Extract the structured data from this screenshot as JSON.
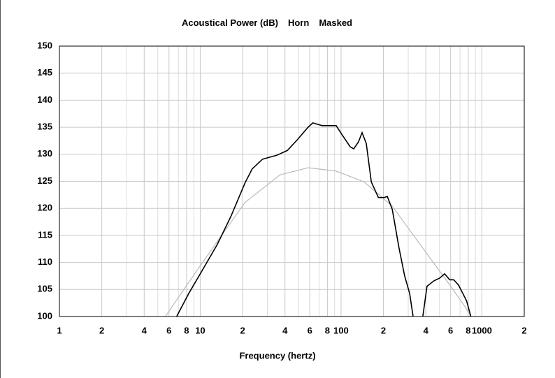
{
  "chart_data": {
    "type": "line",
    "title": "Acoustical Power (dB)",
    "xlabel": "Frequency (hertz)",
    "xscale": "log",
    "grid": true,
    "xlim": [
      1,
      2000
    ],
    "ylim": [
      100,
      150
    ],
    "yticks": [
      100,
      105,
      110,
      115,
      120,
      125,
      130,
      135,
      140,
      145,
      150
    ],
    "xticks": [
      1,
      2,
      4,
      6,
      8,
      10,
      {
        "value": 20,
        "label": "2"
      },
      {
        "value": 40,
        "label": "4"
      },
      {
        "value": 60,
        "label": "6"
      },
      {
        "value": 80,
        "label": "8"
      },
      100,
      {
        "value": 200,
        "label": "2"
      },
      {
        "value": 400,
        "label": "4"
      },
      {
        "value": 600,
        "label": "6"
      },
      {
        "value": 800,
        "label": "8"
      },
      1000,
      {
        "value": 2000,
        "label": "2"
      }
    ],
    "xticks_minor": [
      3,
      5,
      7,
      9,
      30,
      50,
      70,
      90,
      300,
      500,
      700,
      900
    ],
    "series": [
      {
        "name": "Horn",
        "color": "#000000",
        "x": [
          6.8,
          8.3,
          10,
          13.2,
          16.5,
          20.8,
          23.4,
          27.7,
          34.9,
          41.5,
          49,
          58.3,
          63,
          73.4,
          82.5,
          92.3,
          103.6,
          116,
          123,
          133,
          141,
          151,
          164,
          184,
          202,
          213,
          231,
          258,
          283,
          307,
          325,
          350,
          381,
          408,
          457,
          502,
          544,
          591,
          631,
          684,
          725,
          779,
          835
        ],
        "values": [
          100,
          104.3,
          107.9,
          113.3,
          118.5,
          124.7,
          127.3,
          129.1,
          129.8,
          130.7,
          132.7,
          135,
          135.8,
          135.3,
          135.3,
          135.3,
          133.3,
          131.4,
          131,
          132.3,
          134,
          132,
          124.9,
          122,
          122,
          122.2,
          119.8,
          112.7,
          107.5,
          104.3,
          100,
          null,
          100,
          105.6,
          106.6,
          107.1,
          107.9,
          106.8,
          106.8,
          105.8,
          104.5,
          102.9,
          100
        ]
      },
      {
        "name": "Masked",
        "color": "#b4b4b4",
        "x": [
          5.65,
          10,
          20.8,
          36.9,
          58.3,
          92,
          146,
          231,
          365,
          578,
          765,
          835
        ],
        "values": [
          100,
          109.4,
          121.1,
          126.2,
          127.5,
          126.9,
          124.9,
          120.4,
          113.3,
          106.2,
          101.7,
          100
        ]
      }
    ]
  }
}
